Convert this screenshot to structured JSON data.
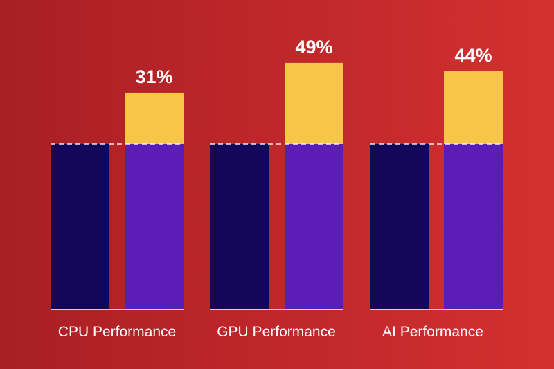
{
  "chart_data": {
    "type": "bar",
    "title": "",
    "xlabel": "",
    "ylabel": "",
    "categories": [
      "CPU Performance",
      "GPU Performance",
      "AI Performance"
    ],
    "series": [
      {
        "values": [
          100,
          100,
          100
        ],
        "color": "#14075a"
      },
      {
        "values": [
          131,
          149,
          144
        ],
        "color": "#5b1db5",
        "gain_color": "#f7c548"
      }
    ],
    "data_labels": [
      "31%",
      "49%",
      "44%"
    ],
    "ylim": [
      0,
      160
    ],
    "grid": false,
    "baseline_dashed_at": 100
  },
  "colors": {
    "background_left": "#a81f24",
    "background_right": "#d33030",
    "text": "#ffffff"
  }
}
